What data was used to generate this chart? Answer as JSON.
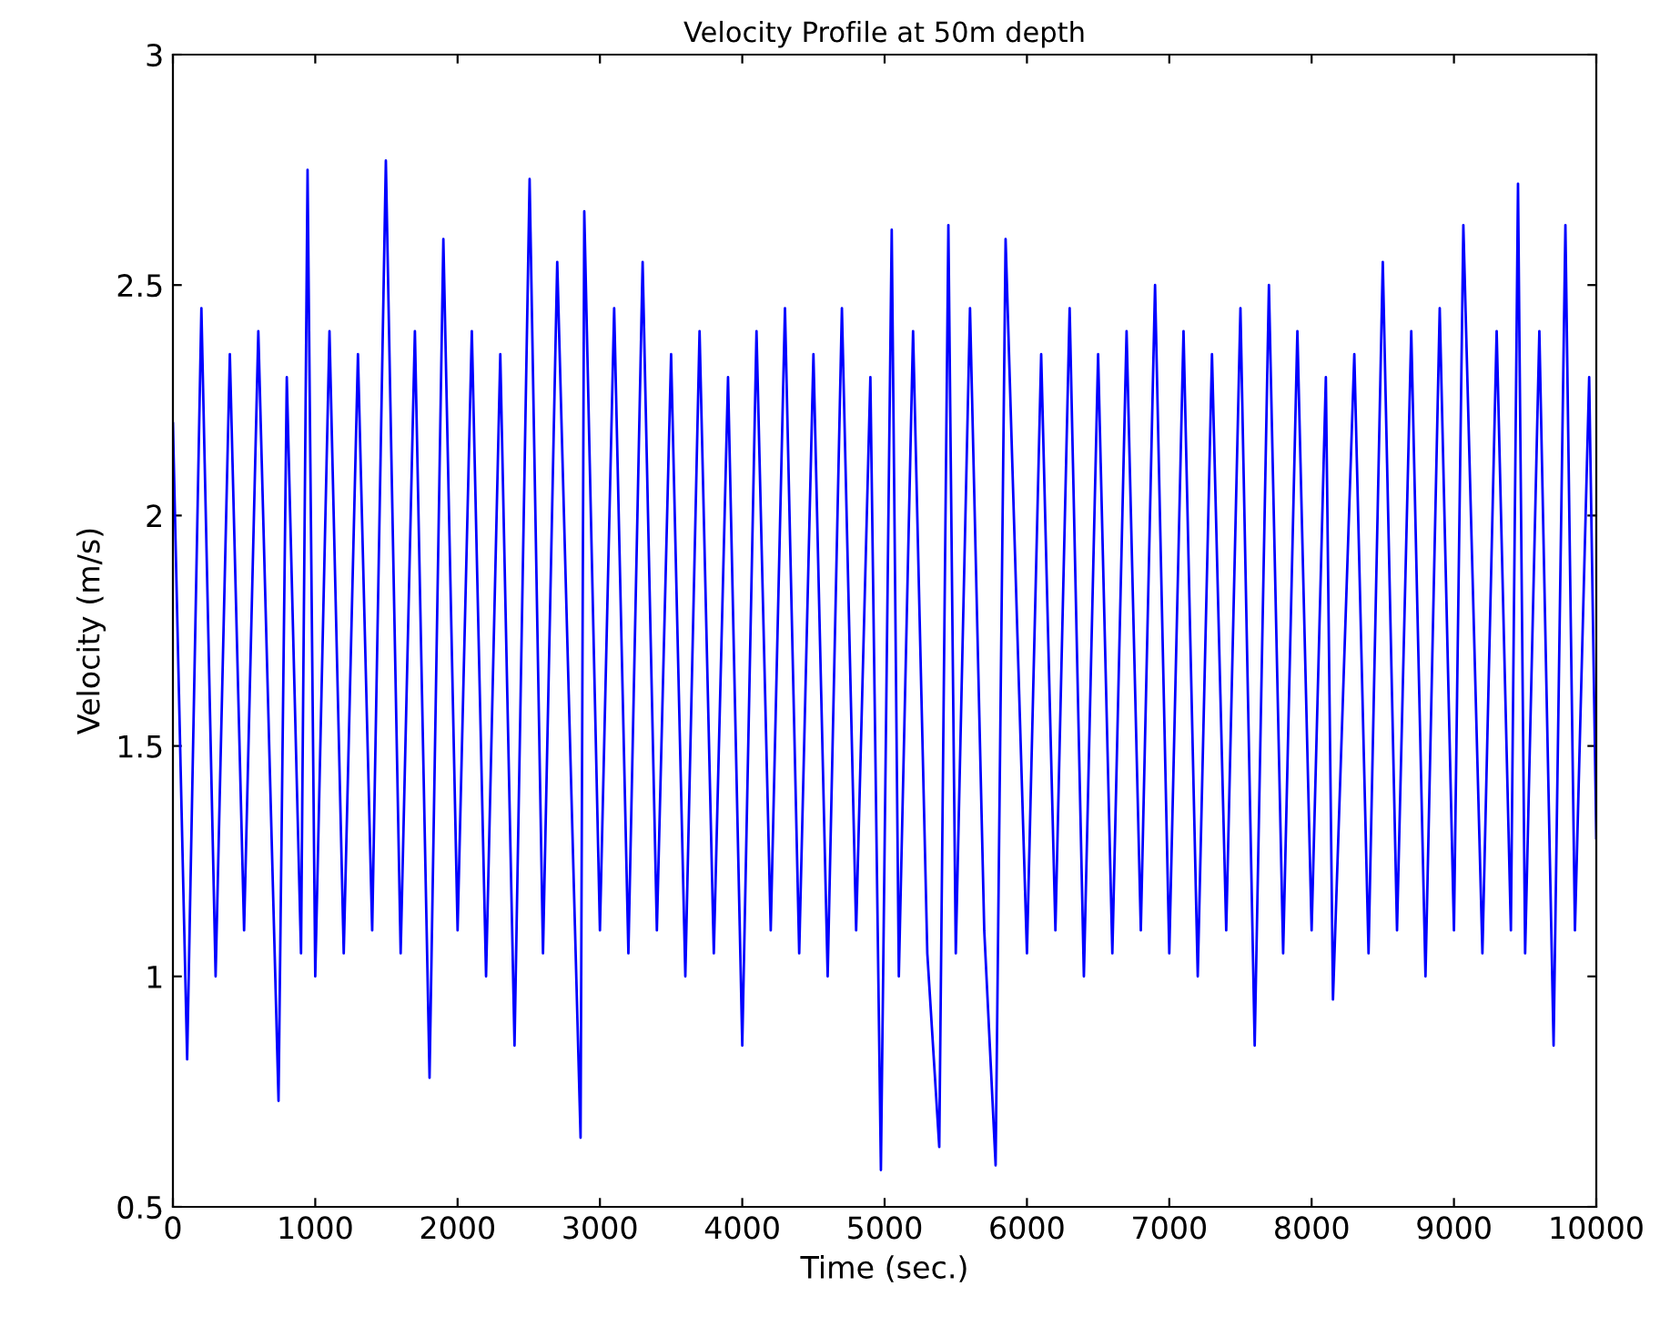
{
  "chart_data": {
    "type": "line",
    "title": "Velocity Profile at 50m depth",
    "xlabel": "Time (sec.)",
    "ylabel": "Velocity (m/s)",
    "x": [
      0,
      100,
      200,
      300,
      400,
      500,
      600,
      742,
      800,
      900,
      946,
      1000,
      1100,
      1200,
      1300,
      1400,
      1496,
      1600,
      1700,
      1803,
      1900,
      2000,
      2100,
      2200,
      2300,
      2400,
      2506,
      2600,
      2700,
      2864,
      2890,
      3000,
      3100,
      3200,
      3300,
      3400,
      3500,
      3600,
      3700,
      3800,
      3900,
      4000,
      4100,
      4200,
      4300,
      4400,
      4500,
      4600,
      4700,
      4800,
      4900,
      4974,
      5050,
      5100,
      5200,
      5300,
      5384,
      5448,
      5500,
      5600,
      5700,
      5780,
      5850,
      6000,
      6100,
      6200,
      6300,
      6400,
      6500,
      6600,
      6700,
      6800,
      6900,
      7000,
      7100,
      7200,
      7300,
      7400,
      7500,
      7600,
      7700,
      7800,
      7900,
      8000,
      8100,
      8150,
      8300,
      8400,
      8500,
      8600,
      8700,
      8800,
      8900,
      9000,
      9066,
      9200,
      9300,
      9400,
      9450,
      9500,
      9600,
      9700,
      9783,
      9850,
      9950,
      10000
    ],
    "series": [
      {
        "color": "#0000ff",
        "values": [
          2.2,
          0.82,
          2.45,
          1.0,
          2.35,
          1.1,
          2.4,
          0.73,
          2.3,
          1.05,
          2.75,
          1.0,
          2.4,
          1.05,
          2.35,
          1.1,
          2.77,
          1.05,
          2.4,
          0.78,
          2.6,
          1.1,
          2.4,
          1.0,
          2.35,
          0.85,
          2.73,
          1.05,
          2.55,
          0.65,
          2.66,
          1.1,
          2.45,
          1.05,
          2.55,
          1.1,
          2.35,
          1.0,
          2.4,
          1.05,
          2.3,
          0.85,
          2.4,
          1.1,
          2.45,
          1.05,
          2.35,
          1.0,
          2.45,
          1.1,
          2.3,
          0.58,
          2.62,
          1.0,
          2.4,
          1.05,
          0.63,
          2.63,
          1.05,
          2.45,
          1.1,
          0.59,
          2.6,
          1.05,
          2.35,
          1.1,
          2.45,
          1.0,
          2.35,
          1.05,
          2.4,
          1.1,
          2.5,
          1.05,
          2.4,
          1.0,
          2.35,
          1.1,
          2.45,
          0.85,
          2.5,
          1.05,
          2.4,
          1.1,
          2.3,
          0.95,
          2.35,
          1.05,
          2.55,
          1.1,
          2.4,
          1.0,
          2.45,
          1.1,
          2.63,
          1.05,
          2.4,
          1.1,
          2.72,
          1.05,
          2.4,
          0.85,
          2.63,
          1.1,
          2.3,
          1.3
        ]
      }
    ],
    "xlim": [
      0,
      10000
    ],
    "xticks": [
      0,
      1000,
      2000,
      3000,
      4000,
      5000,
      6000,
      7000,
      8000,
      9000,
      10000
    ],
    "ylim": [
      0.5,
      3
    ],
    "yticks": [
      0.5,
      1,
      1.5,
      2,
      2.5,
      3
    ],
    "grid": false,
    "line_style": "solid"
  }
}
